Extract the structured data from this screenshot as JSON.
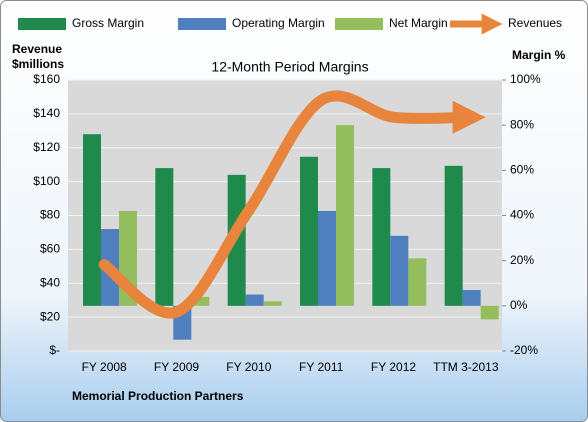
{
  "chart_data": {
    "type": "bar",
    "title": "12-Month Period Margins",
    "y_label": [
      "Revenue",
      "$millions"
    ],
    "y2_label": "Margin %",
    "footer": "Memorial Production Partners",
    "categories": [
      "FY 2008",
      "FY 2009",
      "FY 2010",
      "FY 2011",
      "FY 2012",
      "TTM 3-2013"
    ],
    "ylim": [
      0,
      160
    ],
    "yticks": [
      {
        "value": 0,
        "label": "$-"
      },
      {
        "value": 20,
        "label": "$20"
      },
      {
        "value": 40,
        "label": "$40"
      },
      {
        "value": 60,
        "label": "$60"
      },
      {
        "value": 80,
        "label": "$80"
      },
      {
        "value": 100,
        "label": "$100"
      },
      {
        "value": 120,
        "label": "$120"
      },
      {
        "value": 140,
        "label": "$140"
      },
      {
        "value": 160,
        "label": "$160"
      }
    ],
    "y2lim": [
      -20,
      100
    ],
    "y2ticks": [
      {
        "value": -20,
        "label": "-20%"
      },
      {
        "value": 0,
        "label": "0%"
      },
      {
        "value": 20,
        "label": "20%"
      },
      {
        "value": 40,
        "label": "40%"
      },
      {
        "value": 60,
        "label": "60%"
      },
      {
        "value": 80,
        "label": "80%"
      },
      {
        "value": 100,
        "label": "100%"
      }
    ],
    "grid": true,
    "legend": "top",
    "series": [
      {
        "name": "Gross Margin",
        "color": "#1f8a4c",
        "axis": "y2",
        "values": [
          76,
          61,
          58,
          66,
          61,
          62
        ]
      },
      {
        "name": "Operating Margin",
        "color": "#4f7fbf",
        "axis": "y2",
        "values": [
          34,
          -15,
          5,
          42,
          31,
          7
        ]
      },
      {
        "name": "Net Margin",
        "color": "#94bd5e",
        "axis": "y2",
        "values": [
          42,
          4,
          2,
          80,
          21,
          -6
        ]
      },
      {
        "name": "Revenues",
        "color": "#e8843c",
        "type": "line",
        "values": [
          51,
          23,
          83,
          148,
          138,
          138
        ]
      }
    ]
  }
}
